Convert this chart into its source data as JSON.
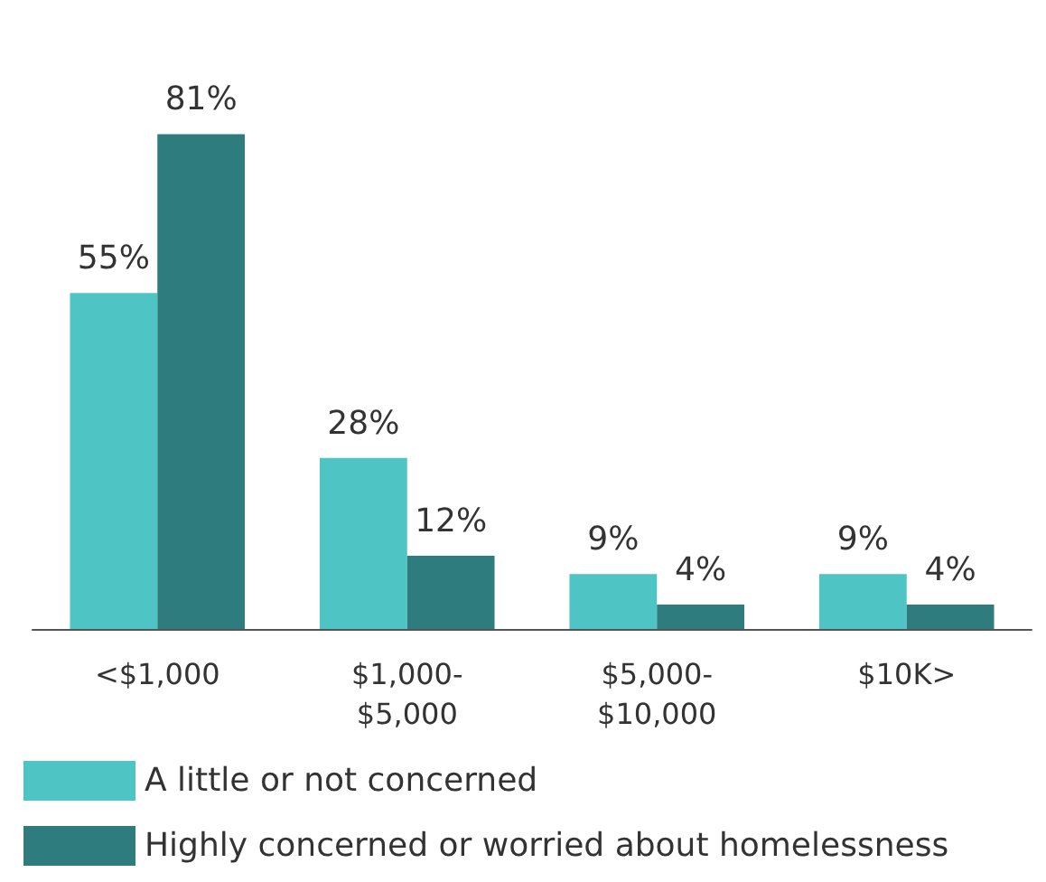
{
  "chart_data": {
    "type": "bar",
    "categories": [
      "<$1,000",
      "$1,000-$5,000",
      "$5,000-$10,000",
      "$10K>"
    ],
    "series": [
      {
        "name": "A little or not concerned",
        "color": "#4fc4c4",
        "values": [
          55,
          28,
          9,
          9
        ],
        "value_labels": [
          "55%",
          "28%",
          "9%",
          "9%"
        ]
      },
      {
        "name": "Highly concerned or worried about homelessness",
        "color": "#2e7c7e",
        "values": [
          81,
          12,
          4,
          4
        ],
        "value_labels": [
          "81%",
          "12%",
          "4%",
          "4%"
        ]
      }
    ],
    "legend": "bottom left",
    "tick_labels": "x"
  }
}
